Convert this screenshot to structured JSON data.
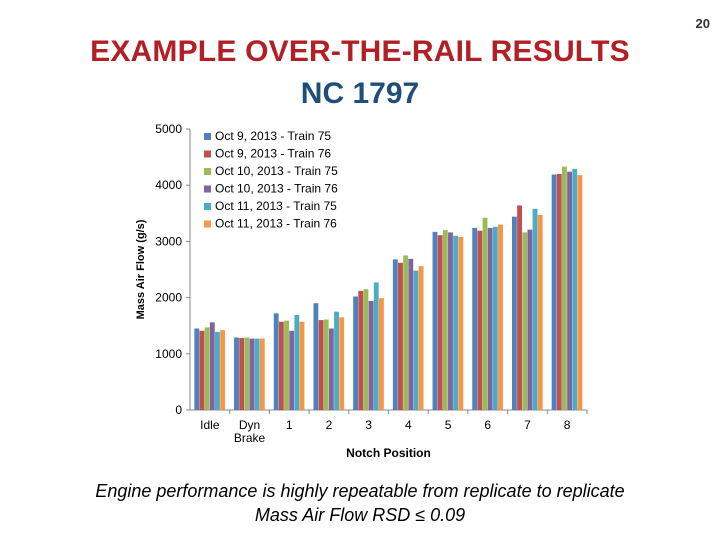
{
  "slide_number": "20",
  "title": "EXAMPLE OVER-THE-RAIL RESULTS",
  "subtitle": "NC 1797",
  "caption_line1": "Engine performance is highly repeatable from replicate to replicate",
  "caption_line2": "Mass Air Flow RSD ≤ 0.09",
  "chart_data": {
    "type": "bar",
    "xlabel": "Notch Position",
    "ylabel": "Mass Air Flow (g/s)",
    "ylim": [
      0,
      5000
    ],
    "yticks": [
      0,
      1000,
      2000,
      3000,
      4000,
      5000
    ],
    "grid": false,
    "legend_position": "top-left",
    "categories": [
      [
        "Idle"
      ],
      [
        "Dyn",
        "Brake"
      ],
      [
        "1"
      ],
      [
        "2"
      ],
      [
        "3"
      ],
      [
        "4"
      ],
      [
        "5"
      ],
      [
        "6"
      ],
      [
        "7"
      ],
      [
        "8"
      ]
    ],
    "series": [
      {
        "name": "Oct 9, 2013 - Train 75",
        "color": "#4f81bd",
        "values": [
          1450,
          1290,
          1720,
          1900,
          2020,
          2680,
          3170,
          3240,
          3440,
          4190
        ]
      },
      {
        "name": "Oct 9, 2013 - Train 76",
        "color": "#c0504d",
        "values": [
          1410,
          1280,
          1570,
          1600,
          2120,
          2620,
          3110,
          3190,
          3640,
          4200
        ]
      },
      {
        "name": "Oct 10, 2013 - Train 75",
        "color": "#9bbb59",
        "values": [
          1470,
          1290,
          1590,
          1610,
          2150,
          2750,
          3200,
          3420,
          3160,
          4330
        ]
      },
      {
        "name": "Oct 10, 2013 - Train 76",
        "color": "#8064a2",
        "values": [
          1560,
          1270,
          1410,
          1450,
          1940,
          2690,
          3160,
          3240,
          3210,
          4240
        ]
      },
      {
        "name": "Oct 11, 2013 - Train 75",
        "color": "#4bacc6",
        "values": [
          1390,
          1270,
          1690,
          1750,
          2270,
          2480,
          3100,
          3260,
          3580,
          4290
        ]
      },
      {
        "name": "Oct 11, 2013 - Train 76",
        "color": "#f79646",
        "values": [
          1420,
          1270,
          1570,
          1650,
          1990,
          2560,
          3080,
          3300,
          3470,
          4180
        ]
      }
    ]
  }
}
